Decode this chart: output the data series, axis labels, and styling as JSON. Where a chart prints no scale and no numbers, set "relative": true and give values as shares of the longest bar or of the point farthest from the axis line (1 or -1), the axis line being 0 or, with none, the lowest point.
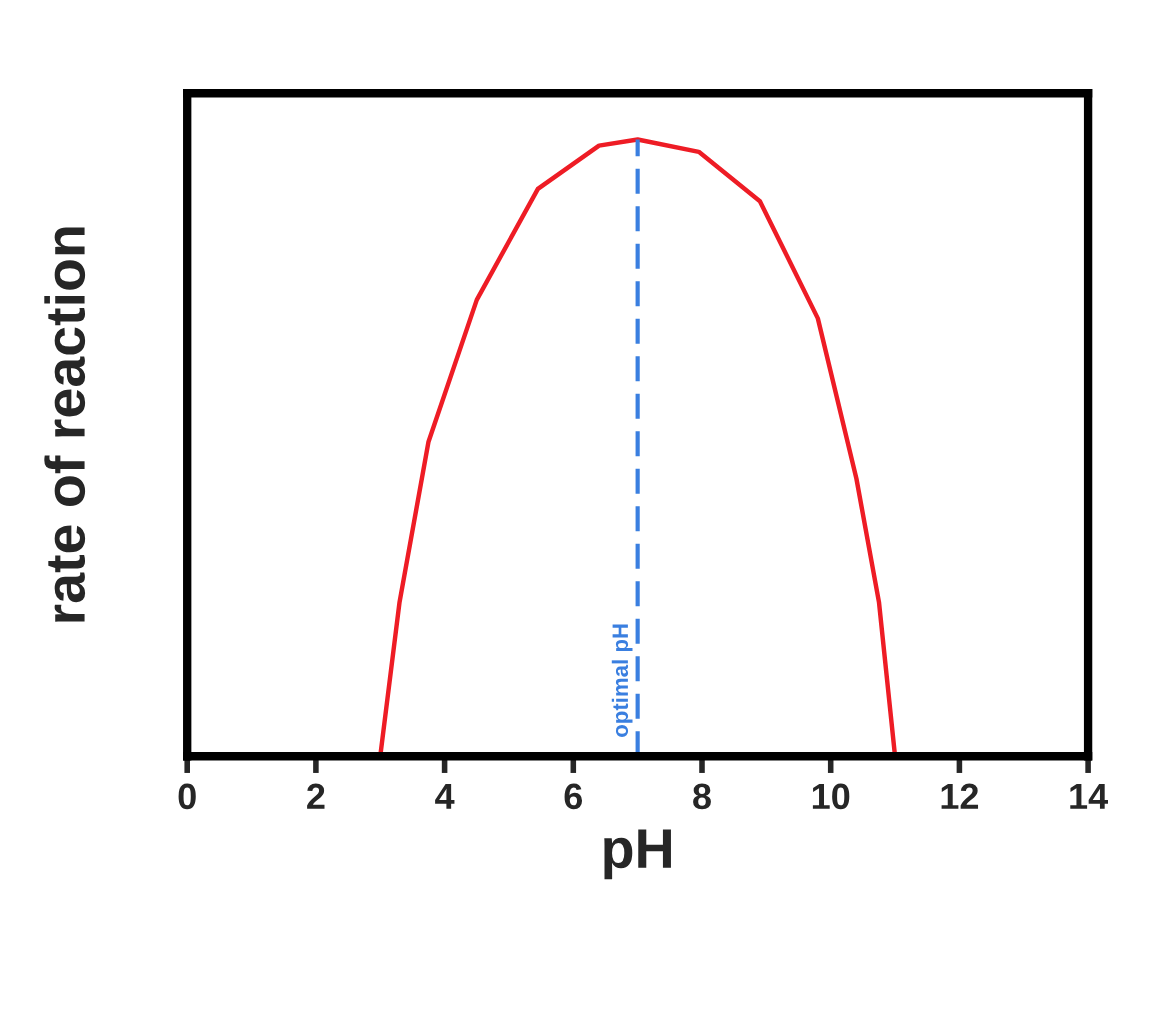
{
  "chart_data": {
    "type": "line",
    "relative": true,
    "xlabel": "pH",
    "ylabel": "rate of reaction",
    "xlim": [
      0,
      14
    ],
    "xticks": [
      0,
      2,
      4,
      6,
      8,
      10,
      12,
      14
    ],
    "grid": false,
    "legend": false,
    "marker": "none",
    "line_style": "solid",
    "series": [
      {
        "color": "#ee1c25",
        "x": [
          3.0,
          3.3,
          3.75,
          4.5,
          5.45,
          6.4,
          7.0,
          7.95,
          8.9,
          9.8,
          10.4,
          10.75,
          11.0
        ],
        "values": [
          0,
          0.25,
          0.51,
          0.74,
          0.92,
          0.99,
          1,
          0.98,
          0.9,
          0.71,
          0.45,
          0.25,
          0
        ]
      }
    ],
    "ref_lines": [
      {
        "axis": "x",
        "value": 7,
        "label": "optimal pH",
        "color": "#3a7fe0",
        "line_style": "dashed"
      }
    ]
  }
}
